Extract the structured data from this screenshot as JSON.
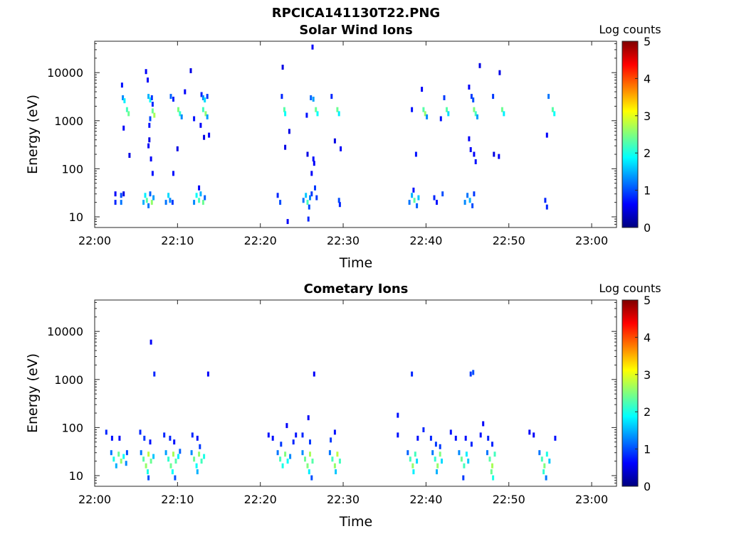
{
  "figure_title": "RPCICA141130T22.PNG",
  "colormap": [
    "#00007f",
    "#0000ff",
    "#007fff",
    "#00ffff",
    "#7fff7f",
    "#ffff00",
    "#ff7f00",
    "#ff0000",
    "#7f0000"
  ],
  "chart_data": [
    {
      "type": "heatmap",
      "title": "Solar Wind Ions",
      "xlabel": "Time",
      "ylabel": "Energy (eV)",
      "x_ticks": [
        "22:00",
        "22:10",
        "22:20",
        "22:30",
        "22:40",
        "22:50",
        "23:00"
      ],
      "y_ticks": [
        "10",
        "100",
        "1000",
        "10000"
      ],
      "y_scale": "log",
      "ylim": [
        6,
        45000
      ],
      "xlim_minutes": [
        0,
        63
      ],
      "colorbar_label": "Log counts",
      "colorbar_ticks": [
        "0",
        "1",
        "2",
        "3",
        "4",
        "5"
      ],
      "clim": [
        0,
        5
      ],
      "cells": [
        [
          2.5,
          30,
          0.6
        ],
        [
          2.5,
          20,
          0.8
        ],
        [
          3.2,
          28,
          1.0
        ],
        [
          3.2,
          20,
          1.2
        ],
        [
          3.5,
          30,
          0.5
        ],
        [
          3.3,
          5500,
          0.7
        ],
        [
          3.4,
          3000,
          1.3
        ],
        [
          3.6,
          2600,
          1.8
        ],
        [
          3.9,
          1700,
          2.2
        ],
        [
          4.1,
          1400,
          2.4
        ],
        [
          3.5,
          700,
          0.6
        ],
        [
          4.2,
          190,
          0.5
        ],
        [
          5.9,
          20,
          1.5
        ],
        [
          6.1,
          28,
          1.8
        ],
        [
          6.3,
          22,
          2.3
        ],
        [
          6.5,
          17,
          1.2
        ],
        [
          6.7,
          30,
          1.1
        ],
        [
          6.9,
          20,
          2.6
        ],
        [
          7.1,
          25,
          1.4
        ],
        [
          6.2,
          10500,
          0.6
        ],
        [
          6.4,
          7000,
          0.6
        ],
        [
          6.5,
          3200,
          1.5
        ],
        [
          6.7,
          2700,
          1.9
        ],
        [
          6.9,
          3000,
          0.9
        ],
        [
          7.0,
          1600,
          2.4
        ],
        [
          7.2,
          1300,
          2.7
        ],
        [
          6.7,
          1100,
          1.0
        ],
        [
          6.6,
          800,
          0.7
        ],
        [
          7.0,
          2200,
          0.8
        ],
        [
          6.5,
          300,
          0.6
        ],
        [
          6.8,
          160,
          0.6
        ],
        [
          7.0,
          80,
          0.7
        ],
        [
          6.6,
          400,
          0.5
        ],
        [
          8.6,
          20,
          1.2
        ],
        [
          8.9,
          28,
          1.7
        ],
        [
          9.1,
          22,
          1.3
        ],
        [
          9.4,
          20,
          0.9
        ],
        [
          9.2,
          3200,
          1.1
        ],
        [
          9.5,
          2800,
          0.8
        ],
        [
          10.1,
          1700,
          2.5
        ],
        [
          10.3,
          1400,
          2.1
        ],
        [
          10.5,
          1200,
          1.3
        ],
        [
          9.5,
          80,
          0.7
        ],
        [
          10.0,
          260,
          0.5
        ],
        [
          11.6,
          11000,
          0.5
        ],
        [
          10.9,
          4000,
          0.6
        ],
        [
          12.0,
          1100,
          0.7
        ],
        [
          12.0,
          20,
          1.3
        ],
        [
          12.3,
          28,
          1.9
        ],
        [
          12.6,
          22,
          2.2
        ],
        [
          12.8,
          30,
          1.5
        ],
        [
          13.1,
          20,
          2.4
        ],
        [
          13.3,
          25,
          1.1
        ],
        [
          12.6,
          40,
          0.6
        ],
        [
          12.9,
          3500,
          0.8
        ],
        [
          13.1,
          3000,
          1.3
        ],
        [
          13.3,
          2700,
          1.7
        ],
        [
          13.6,
          3200,
          0.9
        ],
        [
          13.1,
          1700,
          2.2
        ],
        [
          13.4,
          1400,
          2.6
        ],
        [
          13.6,
          1200,
          1.4
        ],
        [
          12.8,
          800,
          0.6
        ],
        [
          13.8,
          500,
          0.6
        ],
        [
          13.2,
          450,
          0.5
        ],
        [
          22.1,
          28,
          0.8
        ],
        [
          22.4,
          20,
          1.0
        ],
        [
          22.7,
          13000,
          0.5
        ],
        [
          22.6,
          3200,
          0.8
        ],
        [
          22.9,
          1700,
          2.3
        ],
        [
          23.0,
          1400,
          1.9
        ],
        [
          23.5,
          600,
          0.5
        ],
        [
          23.0,
          280,
          0.5
        ],
        [
          23.3,
          8,
          0.6
        ],
        [
          25.2,
          22,
          1.2
        ],
        [
          25.5,
          28,
          1.6
        ],
        [
          25.7,
          20,
          2.2
        ],
        [
          26.0,
          25,
          1.3
        ],
        [
          26.2,
          30,
          0.9
        ],
        [
          25.9,
          16,
          1.0
        ],
        [
          25.8,
          9,
          0.8
        ],
        [
          26.3,
          34000,
          0.6
        ],
        [
          26.1,
          3000,
          1.1
        ],
        [
          26.4,
          2800,
          1.4
        ],
        [
          26.7,
          1700,
          2.4
        ],
        [
          26.9,
          1400,
          1.9
        ],
        [
          25.6,
          1300,
          0.7
        ],
        [
          25.7,
          200,
          0.5
        ],
        [
          26.4,
          160,
          0.7
        ],
        [
          26.2,
          80,
          0.6
        ],
        [
          26.6,
          40,
          0.9
        ],
        [
          26.8,
          25,
          0.9
        ],
        [
          26.5,
          130,
          0.6
        ],
        [
          28.6,
          3200,
          0.8
        ],
        [
          29.3,
          1700,
          2.4
        ],
        [
          29.5,
          1400,
          1.8
        ],
        [
          29.0,
          380,
          0.5
        ],
        [
          29.7,
          260,
          0.6
        ],
        [
          29.5,
          22,
          1.0
        ],
        [
          29.6,
          18,
          0.8
        ],
        [
          38.0,
          20,
          1.2
        ],
        [
          38.3,
          28,
          1.5
        ],
        [
          38.6,
          22,
          2.3
        ],
        [
          38.9,
          17,
          1.1
        ],
        [
          39.1,
          25,
          1.6
        ],
        [
          38.5,
          36,
          0.7
        ],
        [
          38.3,
          1700,
          0.7
        ],
        [
          38.8,
          200,
          0.7
        ],
        [
          39.5,
          4500,
          0.6
        ],
        [
          39.7,
          1700,
          2.3
        ],
        [
          39.9,
          1400,
          2.6
        ],
        [
          40.1,
          1200,
          1.3
        ],
        [
          41.0,
          25,
          0.8
        ],
        [
          41.3,
          20,
          0.7
        ],
        [
          42.0,
          30,
          1.0
        ],
        [
          42.2,
          3000,
          0.9
        ],
        [
          42.5,
          1700,
          2.3
        ],
        [
          42.7,
          1400,
          1.7
        ],
        [
          41.8,
          1100,
          0.7
        ],
        [
          44.7,
          20,
          1.3
        ],
        [
          45.0,
          28,
          1.2
        ],
        [
          45.3,
          22,
          1.5
        ],
        [
          45.6,
          17,
          1.0
        ],
        [
          45.8,
          30,
          0.9
        ],
        [
          45.2,
          5000,
          0.6
        ],
        [
          45.5,
          3200,
          0.9
        ],
        [
          45.7,
          2700,
          1.0
        ],
        [
          45.8,
          1700,
          2.5
        ],
        [
          46.0,
          1400,
          2.2
        ],
        [
          46.2,
          1200,
          1.4
        ],
        [
          45.2,
          420,
          0.6
        ],
        [
          45.4,
          250,
          0.6
        ],
        [
          45.8,
          200,
          0.6
        ],
        [
          46.0,
          140,
          0.7
        ],
        [
          46.5,
          14000,
          0.5
        ],
        [
          48.1,
          3200,
          0.9
        ],
        [
          48.9,
          10000,
          0.5
        ],
        [
          49.2,
          1700,
          2.4
        ],
        [
          49.4,
          1400,
          1.8
        ],
        [
          48.2,
          200,
          0.5
        ],
        [
          48.8,
          180,
          0.6
        ],
        [
          54.4,
          22,
          0.8
        ],
        [
          54.6,
          16,
          0.8
        ],
        [
          54.8,
          3200,
          1.2
        ],
        [
          55.3,
          1700,
          2.3
        ],
        [
          55.5,
          1400,
          1.9
        ],
        [
          54.6,
          500,
          0.6
        ]
      ]
    },
    {
      "type": "heatmap",
      "title": "Cometary Ions",
      "xlabel": "Time",
      "ylabel": "Energy (eV)",
      "x_ticks": [
        "22:00",
        "22:10",
        "22:20",
        "22:30",
        "22:40",
        "22:50",
        "23:00"
      ],
      "y_ticks": [
        "10",
        "100",
        "1000",
        "10000"
      ],
      "y_scale": "log",
      "ylim": [
        6,
        45000
      ],
      "xlim_minutes": [
        0,
        63
      ],
      "colorbar_label": "Log counts",
      "colorbar_ticks": [
        "0",
        "1",
        "2",
        "3",
        "4",
        "5"
      ],
      "clim": [
        0,
        5
      ],
      "cells": [
        [
          2.0,
          30,
          1.2
        ],
        [
          2.3,
          22,
          2.0
        ],
        [
          2.6,
          16,
          1.5
        ],
        [
          2.9,
          28,
          2.4
        ],
        [
          3.2,
          20,
          2.6
        ],
        [
          3.5,
          25,
          1.9
        ],
        [
          3.8,
          18,
          1.3
        ],
        [
          1.4,
          80,
          0.8
        ],
        [
          2.1,
          60,
          0.7
        ],
        [
          3.0,
          60,
          0.6
        ],
        [
          3.9,
          30,
          1.0
        ],
        [
          5.6,
          30,
          1.2
        ],
        [
          5.9,
          22,
          2.3
        ],
        [
          6.2,
          16,
          2.6
        ],
        [
          6.5,
          28,
          2.8
        ],
        [
          6.8,
          20,
          2.4
        ],
        [
          7.1,
          25,
          1.6
        ],
        [
          6.4,
          12,
          2.0
        ],
        [
          6.5,
          9,
          1.0
        ],
        [
          5.5,
          80,
          0.8
        ],
        [
          6.0,
          60,
          0.9
        ],
        [
          6.7,
          50,
          0.7
        ],
        [
          6.8,
          6000,
          0.6
        ],
        [
          7.2,
          1300,
          0.8
        ],
        [
          8.6,
          30,
          1.4
        ],
        [
          8.9,
          22,
          2.1
        ],
        [
          9.2,
          16,
          2.4
        ],
        [
          9.5,
          28,
          2.7
        ],
        [
          9.8,
          20,
          2.3
        ],
        [
          10.1,
          25,
          1.8
        ],
        [
          9.4,
          12,
          1.9
        ],
        [
          9.7,
          9,
          1.0
        ],
        [
          8.4,
          70,
          0.8
        ],
        [
          9.1,
          60,
          0.8
        ],
        [
          9.6,
          50,
          0.7
        ],
        [
          10.3,
          32,
          1.1
        ],
        [
          11.7,
          30,
          1.3
        ],
        [
          12.0,
          22,
          2.4
        ],
        [
          12.3,
          16,
          1.9
        ],
        [
          12.6,
          28,
          2.6
        ],
        [
          12.9,
          20,
          2.2
        ],
        [
          13.2,
          25,
          2.0
        ],
        [
          12.4,
          12,
          1.5
        ],
        [
          11.8,
          70,
          0.8
        ],
        [
          12.4,
          60,
          0.7
        ],
        [
          12.7,
          40,
          0.9
        ],
        [
          13.7,
          1300,
          0.6
        ],
        [
          21.0,
          70,
          0.7
        ],
        [
          21.5,
          60,
          0.7
        ],
        [
          22.1,
          30,
          1.2
        ],
        [
          22.4,
          22,
          2.2
        ],
        [
          22.7,
          16,
          2.0
        ],
        [
          23.0,
          28,
          2.5
        ],
        [
          23.3,
          20,
          1.9
        ],
        [
          23.6,
          25,
          1.3
        ],
        [
          22.5,
          45,
          0.9
        ],
        [
          23.2,
          110,
          0.6
        ],
        [
          24.0,
          50,
          0.8
        ],
        [
          24.3,
          70,
          0.7
        ],
        [
          25.1,
          30,
          1.3
        ],
        [
          25.4,
          22,
          2.4
        ],
        [
          25.7,
          16,
          2.5
        ],
        [
          26.0,
          28,
          2.7
        ],
        [
          26.3,
          20,
          2.3
        ],
        [
          25.9,
          12,
          1.8
        ],
        [
          26.2,
          9,
          1.0
        ],
        [
          25.1,
          70,
          0.8
        ],
        [
          25.8,
          160,
          0.6
        ],
        [
          26.5,
          1300,
          0.6
        ],
        [
          26.0,
          50,
          0.9
        ],
        [
          28.4,
          30,
          1.2
        ],
        [
          28.7,
          22,
          2.2
        ],
        [
          29.0,
          16,
          2.6
        ],
        [
          29.3,
          28,
          2.8
        ],
        [
          29.6,
          20,
          2.2
        ],
        [
          29.1,
          12,
          1.6
        ],
        [
          28.5,
          55,
          0.9
        ],
        [
          29.0,
          80,
          0.7
        ],
        [
          36.6,
          180,
          0.7
        ],
        [
          36.6,
          70,
          0.7
        ],
        [
          37.8,
          30,
          1.1
        ],
        [
          38.1,
          22,
          2.2
        ],
        [
          38.4,
          16,
          2.6
        ],
        [
          38.7,
          28,
          2.2
        ],
        [
          38.9,
          20,
          1.7
        ],
        [
          38.5,
          12,
          1.8
        ],
        [
          38.3,
          1300,
          0.8
        ],
        [
          39.7,
          90,
          0.8
        ],
        [
          39.0,
          60,
          0.7
        ],
        [
          40.8,
          30,
          1.2
        ],
        [
          41.1,
          22,
          2.1
        ],
        [
          41.4,
          16,
          2.6
        ],
        [
          41.7,
          28,
          2.5
        ],
        [
          41.9,
          20,
          1.7
        ],
        [
          41.3,
          12,
          1.5
        ],
        [
          40.6,
          60,
          0.8
        ],
        [
          41.2,
          45,
          0.9
        ],
        [
          41.7,
          40,
          0.9
        ],
        [
          44.0,
          30,
          1.3
        ],
        [
          44.3,
          22,
          2.4
        ],
        [
          44.6,
          16,
          2.2
        ],
        [
          44.9,
          28,
          1.8
        ],
        [
          45.1,
          20,
          1.6
        ],
        [
          44.5,
          9,
          0.9
        ],
        [
          43.0,
          80,
          0.7
        ],
        [
          43.6,
          60,
          0.7
        ],
        [
          44.8,
          60,
          0.7
        ],
        [
          45.4,
          1300,
          0.9
        ],
        [
          45.7,
          1400,
          1.0
        ],
        [
          45.5,
          45,
          0.8
        ],
        [
          46.6,
          70,
          0.7
        ],
        [
          46.9,
          120,
          0.6
        ],
        [
          47.4,
          30,
          1.2
        ],
        [
          47.7,
          22,
          2.3
        ],
        [
          48.0,
          16,
          2.7
        ],
        [
          48.3,
          28,
          2.2
        ],
        [
          47.9,
          12,
          2.4
        ],
        [
          48.1,
          9,
          2.0
        ],
        [
          47.5,
          60,
          0.8
        ],
        [
          48.0,
          45,
          0.8
        ],
        [
          52.5,
          80,
          0.6
        ],
        [
          53.0,
          70,
          0.6
        ],
        [
          53.7,
          30,
          1.2
        ],
        [
          54.0,
          22,
          2.2
        ],
        [
          54.3,
          16,
          2.5
        ],
        [
          54.6,
          28,
          2.0
        ],
        [
          54.9,
          20,
          1.6
        ],
        [
          54.2,
          12,
          2.1
        ],
        [
          54.5,
          9,
          1.2
        ],
        [
          55.6,
          60,
          0.7
        ]
      ]
    }
  ]
}
